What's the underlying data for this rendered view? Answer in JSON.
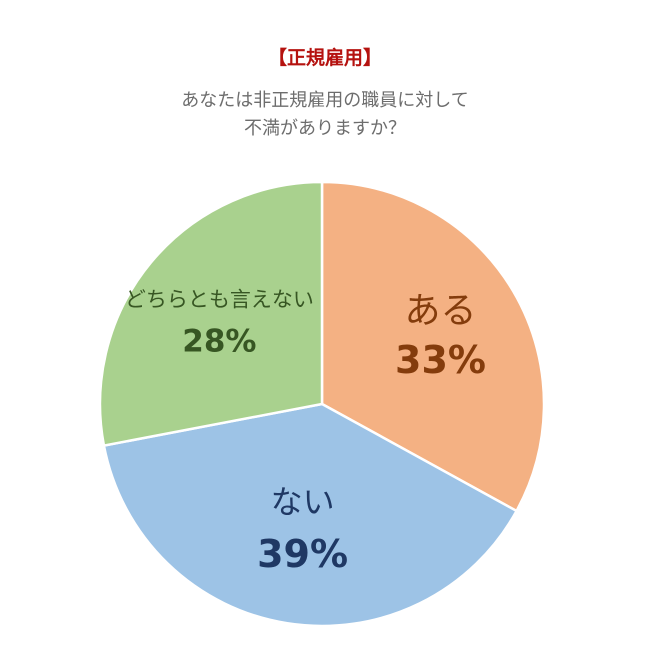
{
  "title": "【正規雇用】",
  "subtitle_lines": [
    "あなたは非正規雇用の職員に対して",
    "不満がありますか？"
  ],
  "colors": {
    "title": "#b5120f",
    "subtitle": "#6d6d6d"
  },
  "chart_data": {
    "type": "pie",
    "title": "【正規雇用】",
    "start_angle_deg": 0,
    "direction": "clockwise",
    "slices": [
      {
        "label": "ある",
        "value": 33,
        "percent_label": "33%",
        "color": "#f4b183",
        "text_color": "#843c0c"
      },
      {
        "label": "ない",
        "value": 39,
        "percent_label": "39%",
        "color": "#9dc3e6",
        "text_color": "#1f3864"
      },
      {
        "label": "どちらとも言えない",
        "value": 28,
        "percent_label": "28%",
        "color": "#a9d18e",
        "text_color": "#375623"
      }
    ]
  }
}
